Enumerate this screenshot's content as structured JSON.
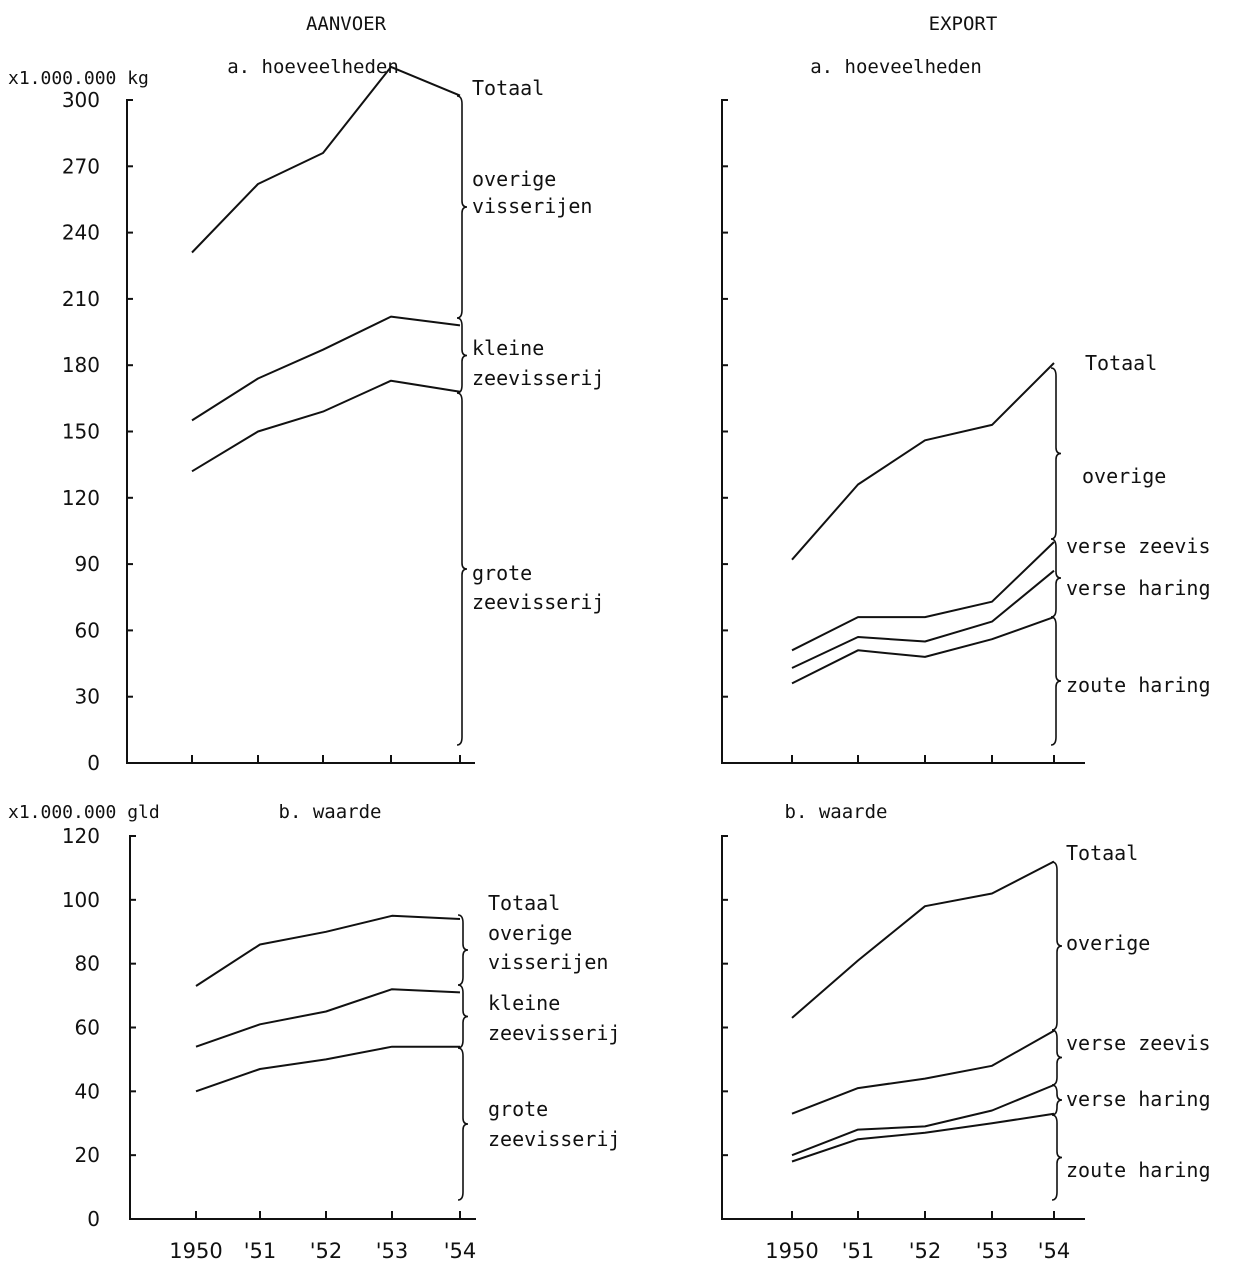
{
  "headings": {
    "left": "AANVOER",
    "right": "EXPORT"
  },
  "chart_data": [
    {
      "type": "line",
      "id": "aanvoer-hoeveelheden",
      "title": "a. hoeveelheden",
      "ylabel": "x1.000.000 kg",
      "ylim": [
        0,
        300
      ],
      "yticks": [
        "0",
        "30",
        "60",
        "90",
        "120",
        "150",
        "180",
        "210",
        "240",
        "270",
        "300"
      ],
      "x": [
        "1950",
        "'51",
        "'52",
        "'53",
        "'54"
      ],
      "xticks_shown": false,
      "series": [
        {
          "name": "Totaal",
          "values": [
            231,
            262,
            276,
            315,
            302
          ]
        },
        {
          "name": "",
          "values": [
            155,
            174,
            187,
            202,
            198
          ]
        },
        {
          "name": "",
          "values": [
            132,
            150,
            159,
            173,
            168
          ]
        }
      ],
      "band_labels": [
        "Totaal",
        "overige visserijen",
        "kleine zeevisserij",
        "grote zeevisserij"
      ]
    },
    {
      "type": "line",
      "id": "export-hoeveelheden",
      "title": "a. hoeveelheden",
      "ylabel": "",
      "ylim": [
        0,
        300
      ],
      "yticks": [],
      "x": [
        "1950",
        "'51",
        "'52",
        "'53",
        "'54"
      ],
      "xticks_shown": false,
      "series": [
        {
          "name": "Totaal",
          "values": [
            92,
            126,
            146,
            153,
            181
          ]
        },
        {
          "name": "",
          "values": [
            51,
            66,
            66,
            73,
            100
          ]
        },
        {
          "name": "",
          "values": [
            43,
            57,
            55,
            64,
            87
          ]
        },
        {
          "name": "",
          "values": [
            36,
            51,
            48,
            56,
            66
          ]
        }
      ],
      "band_labels": [
        "Totaal",
        "overige",
        "verse zeevis",
        "verse haring",
        "zoute haring"
      ]
    },
    {
      "type": "line",
      "id": "aanvoer-waarde",
      "title": "b. waarde",
      "ylabel": "x1.000.000 gld",
      "ylim": [
        0,
        120
      ],
      "yticks": [
        "0",
        "20",
        "40",
        "60",
        "80",
        "100",
        "120"
      ],
      "x": [
        "1950",
        "'51",
        "'52",
        "'53",
        "'54"
      ],
      "xticks_shown": true,
      "series": [
        {
          "name": "Totaal",
          "values": [
            73,
            86,
            90,
            95,
            94
          ]
        },
        {
          "name": "",
          "values": [
            54,
            61,
            65,
            72,
            71
          ]
        },
        {
          "name": "",
          "values": [
            40,
            47,
            50,
            54,
            54
          ]
        }
      ],
      "band_labels": [
        "Totaal",
        "overige visserijen",
        "kleine zeevisserij",
        "grote zeevisserij"
      ]
    },
    {
      "type": "line",
      "id": "export-waarde",
      "title": "b. waarde",
      "ylabel": "",
      "ylim": [
        0,
        120
      ],
      "yticks": [],
      "x": [
        "1950",
        "'51",
        "'52",
        "'53",
        "'54"
      ],
      "xticks_shown": true,
      "series": [
        {
          "name": "Totaal",
          "values": [
            63,
            81,
            98,
            102,
            112
          ]
        },
        {
          "name": "",
          "values": [
            33,
            41,
            44,
            48,
            59
          ]
        },
        {
          "name": "",
          "values": [
            20,
            28,
            29,
            34,
            42
          ]
        },
        {
          "name": "",
          "values": [
            18,
            25,
            27,
            30,
            33
          ]
        }
      ],
      "band_labels": [
        "Totaal",
        "overige",
        "verse zeevis",
        "verse haring",
        "zoute haring"
      ]
    }
  ]
}
